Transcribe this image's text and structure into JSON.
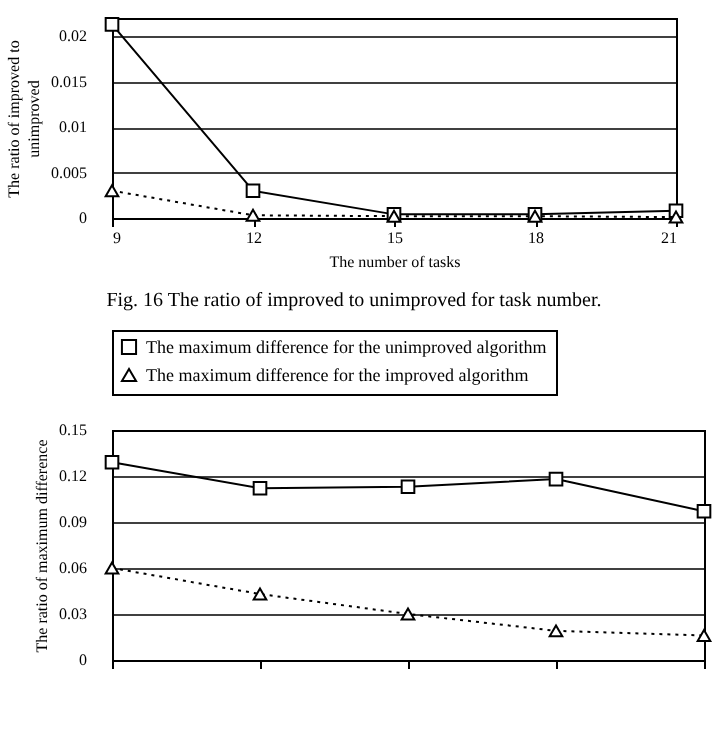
{
  "chart_data": [
    {
      "type": "line",
      "xlabel": "The number of tasks",
      "ylabel": "The ratio of improved to unimproved",
      "x": [
        9,
        12,
        15,
        18,
        21
      ],
      "xlim": [
        9,
        21
      ],
      "xticks": [
        9,
        12,
        15,
        18,
        21
      ],
      "ylim": [
        0,
        0.022
      ],
      "yticks": [
        {
          "value": 0,
          "label": "0"
        },
        0.005,
        0.01,
        0.015,
        0.02
      ],
      "grid": "y",
      "annotations": [
        "Fig. 16     The ratio of improved to unimproved for task number."
      ],
      "series": [
        {
          "color": "#000000",
          "marker": "square",
          "line_style": "solid",
          "values": [
            0.0213,
            0.003,
            0.0004,
            0.0004,
            0.0008
          ]
        },
        {
          "color": "#000000",
          "marker": "triangle",
          "line_style": "dotted",
          "values": [
            0.003,
            0.0003,
            0.0002,
            0.0002,
            0.0001
          ]
        }
      ]
    },
    {
      "type": "line",
      "ylabel": "The ratio of maximum difference",
      "categories": [
        null,
        null,
        null,
        null,
        null
      ],
      "ylim": [
        0,
        0.15
      ],
      "yticks": [
        {
          "value": 0,
          "label": "0"
        },
        0.03,
        0.06,
        0.09,
        0.12,
        0.15
      ],
      "grid": "y",
      "legend": "top",
      "series": [
        {
          "name": "The maximum difference for the unimproved algorithm",
          "color": "#000000",
          "marker": "square",
          "line_style": "solid",
          "values": [
            0.129,
            0.112,
            0.113,
            0.118,
            0.097
          ]
        },
        {
          "name": "The maximum difference for the improved algorithm",
          "color": "#000000",
          "marker": "triangle",
          "line_style": "dotted",
          "values": [
            0.06,
            0.043,
            0.03,
            0.019,
            0.016
          ]
        }
      ]
    }
  ]
}
